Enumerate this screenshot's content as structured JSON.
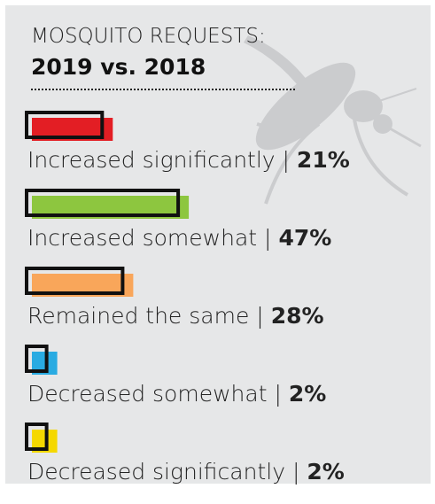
{
  "chart_data": {
    "type": "bar",
    "orientation": "horizontal",
    "title": "MOSQUITO REQUESTS:",
    "subtitle": "2019 vs. 2018",
    "categories": [
      "Increased significantly",
      "Increased somewhat",
      "Remained the same",
      "Decreased somewhat",
      "Decreased significantly"
    ],
    "separator": "|",
    "values": [
      21,
      47,
      28,
      2,
      2
    ],
    "value_labels": [
      "21%",
      "47%",
      "28%",
      "2%",
      "2%"
    ],
    "colors": [
      "#e31e24",
      "#8dc63f",
      "#f9a65a",
      "#29abe2",
      "#f5d800"
    ]
  }
}
